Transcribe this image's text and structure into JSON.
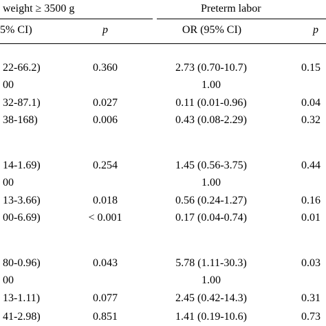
{
  "header": {
    "group1_title": "weight ≥ 3500 g",
    "group2_title": "Preterm labor",
    "col_ci1": "5% CI)",
    "col_p1": "p",
    "col_or2": "OR (95% CI)",
    "col_p2": "p"
  },
  "rows": [
    {
      "ci1": "22-66.2)",
      "p1": "0.360",
      "or2": "2.73 (0.70-10.7)",
      "p2": "0.15"
    },
    {
      "ci1": "00",
      "p1": "",
      "or2": "1.00",
      "p2": ""
    },
    {
      "ci1": "32-87.1)",
      "p1": "0.027",
      "or2": "0.11 (0.01-0.96)",
      "p2": "0.04"
    },
    {
      "ci1": "38-168)",
      "p1": "0.006",
      "or2": "0.43 (0.08-2.29)",
      "p2": "0.32"
    },
    {
      "ci1": "14-1.69)",
      "p1": "0.254",
      "or2": "1.45 (0.56-3.75)",
      "p2": "0.44"
    },
    {
      "ci1": "00",
      "p1": "",
      "or2": "1.00",
      "p2": ""
    },
    {
      "ci1": "13-3.66)",
      "p1": "0.018",
      "or2": "0.56 (0.24-1.27)",
      "p2": "0.16"
    },
    {
      "ci1": "00-6.69)",
      "p1": "< 0.001",
      "or2": "0.17 (0.04-0.74)",
      "p2": "0.01"
    },
    {
      "ci1": "80-0.96)",
      "p1": "0.043",
      "or2": "5.78 (1.11-30.3)",
      "p2": "0.03"
    },
    {
      "ci1": "00",
      "p1": "",
      "or2": "1.00",
      "p2": ""
    },
    {
      "ci1": "13-1.11)",
      "p1": "0.077",
      "or2": "2.45 (0.42-14.3)",
      "p2": "0.31"
    },
    {
      "ci1": "41-2.98)",
      "p1": "0.851",
      "or2": "1.41 (0.19-10.6)",
      "p2": "0.73"
    }
  ]
}
